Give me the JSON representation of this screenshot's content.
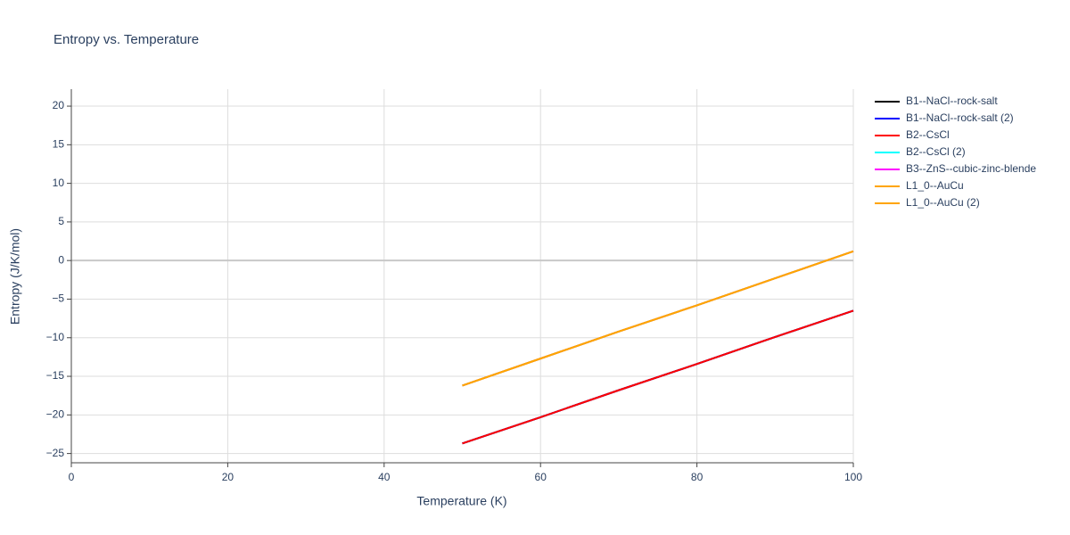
{
  "chart_data": {
    "type": "line",
    "title": "Entropy vs. Temperature",
    "x_label": "Temperature (K)",
    "y_label": "Entropy (J/K/mol)",
    "x": [
      50,
      60,
      70,
      80,
      90,
      100
    ],
    "series": [
      {
        "name": "B1--NaCl--rock-salt",
        "color": "#000000",
        "values": [
          -23.7,
          -20.3,
          -16.8,
          -13.4,
          -9.9,
          -6.5
        ]
      },
      {
        "name": "B1--NaCl--rock-salt (2)",
        "color": "#0000ff",
        "values": [
          -23.7,
          -20.3,
          -16.8,
          -13.4,
          -9.9,
          -6.5
        ]
      },
      {
        "name": "B2--CsCl",
        "color": "#ff0000",
        "values": [
          -23.7,
          -20.3,
          -16.8,
          -13.4,
          -9.9,
          -6.5
        ]
      },
      {
        "name": "B2--CsCl (2)",
        "color": "#00ffff",
        "values": [
          -16.2,
          -12.7,
          -9.2,
          -5.8,
          -2.3,
          1.2
        ]
      },
      {
        "name": "B3--ZnS--cubic-zinc-blende",
        "color": "#ff00ff",
        "values": [
          -16.2,
          -12.7,
          -9.2,
          -5.8,
          -2.3,
          1.2
        ]
      },
      {
        "name": "L1_0--AuCu",
        "color": "#ffa500",
        "values": [
          -16.2,
          -12.7,
          -9.2,
          -5.8,
          -2.3,
          1.2
        ]
      },
      {
        "name": "L1_0--AuCu (2)",
        "color": "#ffa500",
        "values": [
          -16.2,
          -12.7,
          -9.2,
          -5.8,
          -2.3,
          1.2
        ]
      }
    ],
    "xlim": [
      0,
      100
    ],
    "xticks": [
      0,
      20,
      40,
      60,
      80,
      100
    ],
    "ylim": [
      -26.2,
      22.2
    ],
    "yticks": [
      {
        "value": -25,
        "label": "−25"
      },
      {
        "value": -20,
        "label": "−20"
      },
      {
        "value": -15,
        "label": "−15"
      },
      {
        "value": -10,
        "label": "−10"
      },
      {
        "value": -5,
        "label": "−5"
      },
      0,
      5,
      10,
      15,
      20
    ],
    "grid": true,
    "legend": "right"
  }
}
